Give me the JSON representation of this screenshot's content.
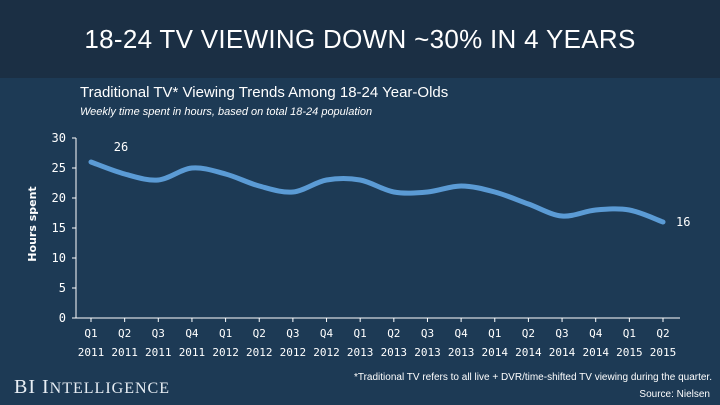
{
  "header": {
    "title": "18-24 TV VIEWING DOWN ~30% IN 4 YEARS"
  },
  "chart_data": {
    "type": "line",
    "title": "Traditional TV* Viewing Trends Among 18-24 Year-Olds",
    "subtitle": "Weekly time spent in hours, based on total 18-24 population",
    "ylabel": "Hours spent",
    "xlabel": "",
    "ylim": [
      0,
      30
    ],
    "yticks": [
      "0",
      "5",
      "10",
      "15",
      "20",
      "25",
      "30"
    ],
    "categories": [
      [
        "Q1",
        "2011"
      ],
      [
        "Q2",
        "2011"
      ],
      [
        "Q3",
        "2011"
      ],
      [
        "Q4",
        "2011"
      ],
      [
        "Q1",
        "2012"
      ],
      [
        "Q2",
        "2012"
      ],
      [
        "Q3",
        "2012"
      ],
      [
        "Q4",
        "2012"
      ],
      [
        "Q1",
        "2013"
      ],
      [
        "Q2",
        "2013"
      ],
      [
        "Q3",
        "2013"
      ],
      [
        "Q4",
        "2013"
      ],
      [
        "Q1",
        "2014"
      ],
      [
        "Q2",
        "2014"
      ],
      [
        "Q3",
        "2014"
      ],
      [
        "Q4",
        "2014"
      ],
      [
        "Q1",
        "2015"
      ],
      [
        "Q2",
        "2015"
      ]
    ],
    "values": [
      26,
      24,
      23,
      25,
      24,
      22,
      21,
      23,
      23,
      21,
      21,
      22,
      21,
      19,
      17,
      18,
      18,
      16
    ],
    "data_labels": [
      {
        "index": 0,
        "text": "26"
      },
      {
        "index": 17,
        "text": "16"
      }
    ],
    "grid": false,
    "colors": {
      "line": "#5b9bd5",
      "axis": "#ffffff"
    }
  },
  "footer": {
    "footnote": "*Traditional TV refers to all live + DVR/time-shifted TV viewing during the quarter.",
    "source": "Source: Nielsen",
    "brand_bi": "BI",
    "brand_i": "I",
    "brand_rest": "NTELLIGENCE"
  }
}
